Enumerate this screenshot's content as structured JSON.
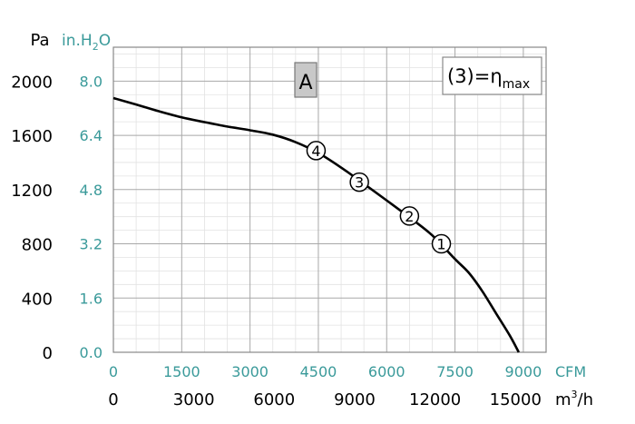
{
  "chart_data": {
    "type": "line",
    "axis_units": {
      "y_left": "Pa",
      "y_right": "in.H2O",
      "x_top": "CFM",
      "x_bottom": "m³/h"
    },
    "y_ticks_pa": [
      "0",
      "400",
      "800",
      "1200",
      "1600",
      "2000"
    ],
    "y_ticks_inh2o": [
      "0.0",
      "1.6",
      "3.2",
      "4.8",
      "6.4",
      "8.0"
    ],
    "x_ticks_m3h": [
      "0",
      "3000",
      "6000",
      "9000",
      "12000",
      "15000"
    ],
    "x_ticks_cfm": [
      "0",
      "1500",
      "3000",
      "4500",
      "6000",
      "7500",
      "9000"
    ],
    "xlim_cfm": [
      0,
      9500
    ],
    "ylim_inh2o": [
      0,
      9.0
    ],
    "grid": true,
    "curve_label": "A",
    "legend_text": "(3)=η",
    "legend_subscript": "max",
    "series": [
      {
        "x_cfm": [
          0,
          500,
          1000,
          1500,
          2000,
          2500,
          3000,
          3500,
          4000,
          4500,
          5000,
          5500,
          6000,
          6500,
          7000,
          7500,
          7800,
          8100,
          8400,
          8700,
          8900
        ],
        "y_inh2o": [
          7.5,
          7.31,
          7.11,
          6.93,
          6.79,
          6.66,
          6.55,
          6.42,
          6.2,
          5.88,
          5.45,
          4.97,
          4.48,
          3.98,
          3.45,
          2.75,
          2.35,
          1.8,
          1.15,
          0.5,
          0.0
        ]
      }
    ],
    "points": [
      {
        "label": "1",
        "x_cfm": 7200,
        "y_inh2o": 3.2
      },
      {
        "label": "2",
        "x_cfm": 6500,
        "y_inh2o": 4.02
      },
      {
        "label": "3",
        "x_cfm": 5400,
        "y_inh2o": 5.02
      },
      {
        "label": "4",
        "x_cfm": 4450,
        "y_inh2o": 5.95
      }
    ]
  }
}
